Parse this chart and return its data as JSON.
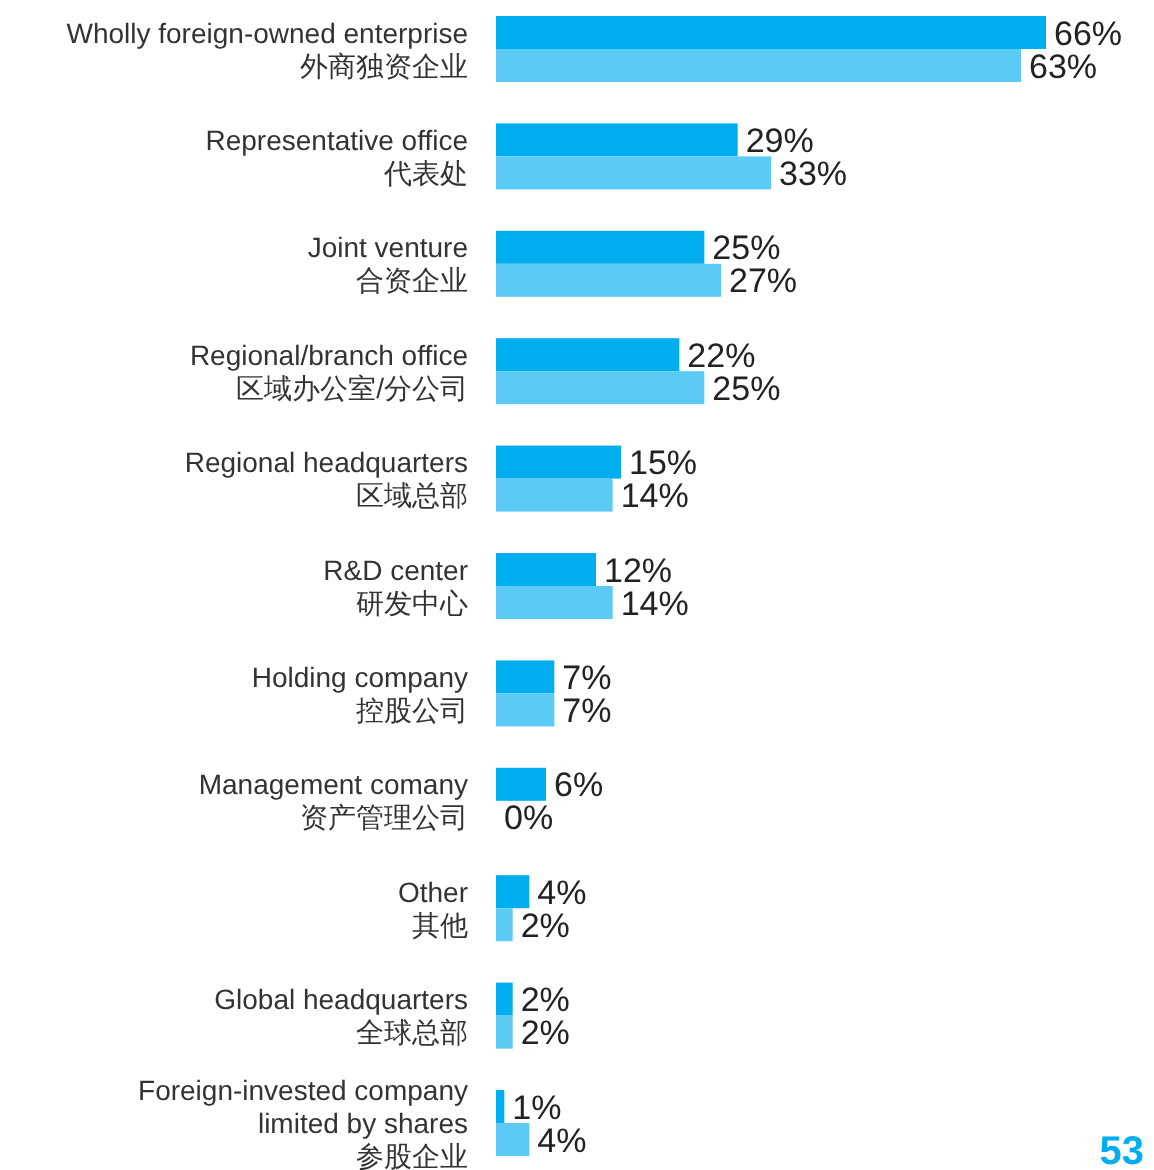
{
  "chart_data": {
    "type": "bar",
    "orientation": "horizontal",
    "categories": [
      "Wholly foreign-owned enterprise\n外商独资企业",
      "Representative office\n代表处",
      "Joint venture\n合资企业",
      "Regional/branch office\n区域办公室/分公司",
      "Regional headquarters\n区域总部",
      "R&D center\n研发中心",
      "Holding company\n控股公司",
      "Management comany\n资产管理公司",
      "Other\n其他",
      "Global headquarters\n全球总部",
      "Foreign-invested company\nlimited by shares\n参股企业"
    ],
    "series": [
      {
        "color": "#00adef",
        "values": [
          66,
          29,
          25,
          22,
          15,
          12,
          7,
          6,
          4,
          2,
          1
        ],
        "value_labels": [
          "66%",
          "29%",
          "25%",
          "22%",
          "15%",
          "12%",
          "7%",
          "6%",
          "4%",
          "2%",
          "1%"
        ]
      },
      {
        "color": "#5bcbf5",
        "values": [
          63,
          33,
          27,
          25,
          14,
          14,
          7,
          0,
          2,
          2,
          4
        ],
        "value_labels": [
          "63%",
          "33%",
          "27%",
          "25%",
          "14%",
          "14%",
          "7%",
          "0%",
          "2%",
          "2%",
          "4%"
        ]
      }
    ],
    "annotations": [
      "53"
    ]
  }
}
